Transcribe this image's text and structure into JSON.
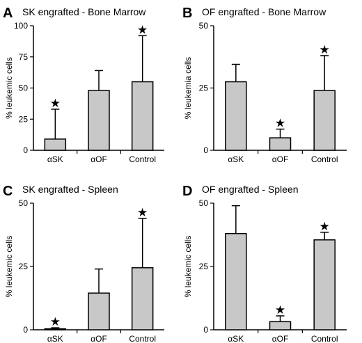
{
  "colors": {
    "bar_fill": "#c8c8c8",
    "axis": "#000000",
    "background": "#ffffff"
  },
  "chart_data": [
    {
      "panel": "A",
      "type": "bar",
      "title": "SK engrafted - Bone Marrow",
      "ylabel": "% leukemic cells",
      "xlabel": "",
      "categories": [
        "αSK",
        "αOF",
        "Control"
      ],
      "values": [
        9,
        48,
        55
      ],
      "error_upper": [
        33,
        64,
        92
      ],
      "significant": [
        true,
        false,
        true
      ],
      "ylim": [
        0,
        100
      ],
      "yticks": [
        0,
        25,
        50,
        75,
        100
      ],
      "grid": false,
      "error_bar_direction": "upper"
    },
    {
      "panel": "B",
      "type": "bar",
      "title": "OF engrafted - Bone Marrow",
      "ylabel": "% leukemia cells",
      "xlabel": "",
      "categories": [
        "αSK",
        "αOF",
        "Control"
      ],
      "values": [
        27.5,
        5,
        24
      ],
      "error_upper": [
        34.5,
        8.5,
        38
      ],
      "significant": [
        false,
        true,
        true
      ],
      "ylim": [
        0,
        50
      ],
      "yticks": [
        0,
        25,
        50
      ],
      "grid": false,
      "error_bar_direction": "upper"
    },
    {
      "panel": "C",
      "type": "bar",
      "title": "SK engrafted - Spleen",
      "ylabel": "% leukemic cells",
      "xlabel": "",
      "categories": [
        "αSK",
        "αOF",
        "Control"
      ],
      "values": [
        0.4,
        14.5,
        24.5
      ],
      "error_upper": [
        0.8,
        24,
        44
      ],
      "significant": [
        true,
        false,
        true
      ],
      "ylim": [
        0,
        50
      ],
      "yticks": [
        0,
        25,
        50
      ],
      "grid": false,
      "error_bar_direction": "upper"
    },
    {
      "panel": "D",
      "type": "bar",
      "title": "OF engrafted - Spleen",
      "ylabel": "% leukemic cells",
      "xlabel": "",
      "categories": [
        "αSK",
        "αOF",
        "Control"
      ],
      "values": [
        38,
        3.2,
        35.5
      ],
      "error_upper": [
        49,
        5.5,
        38.5
      ],
      "significant": [
        false,
        true,
        true
      ],
      "ylim": [
        0,
        50
      ],
      "yticks": [
        0,
        25,
        50
      ],
      "grid": false,
      "error_bar_direction": "upper"
    }
  ]
}
